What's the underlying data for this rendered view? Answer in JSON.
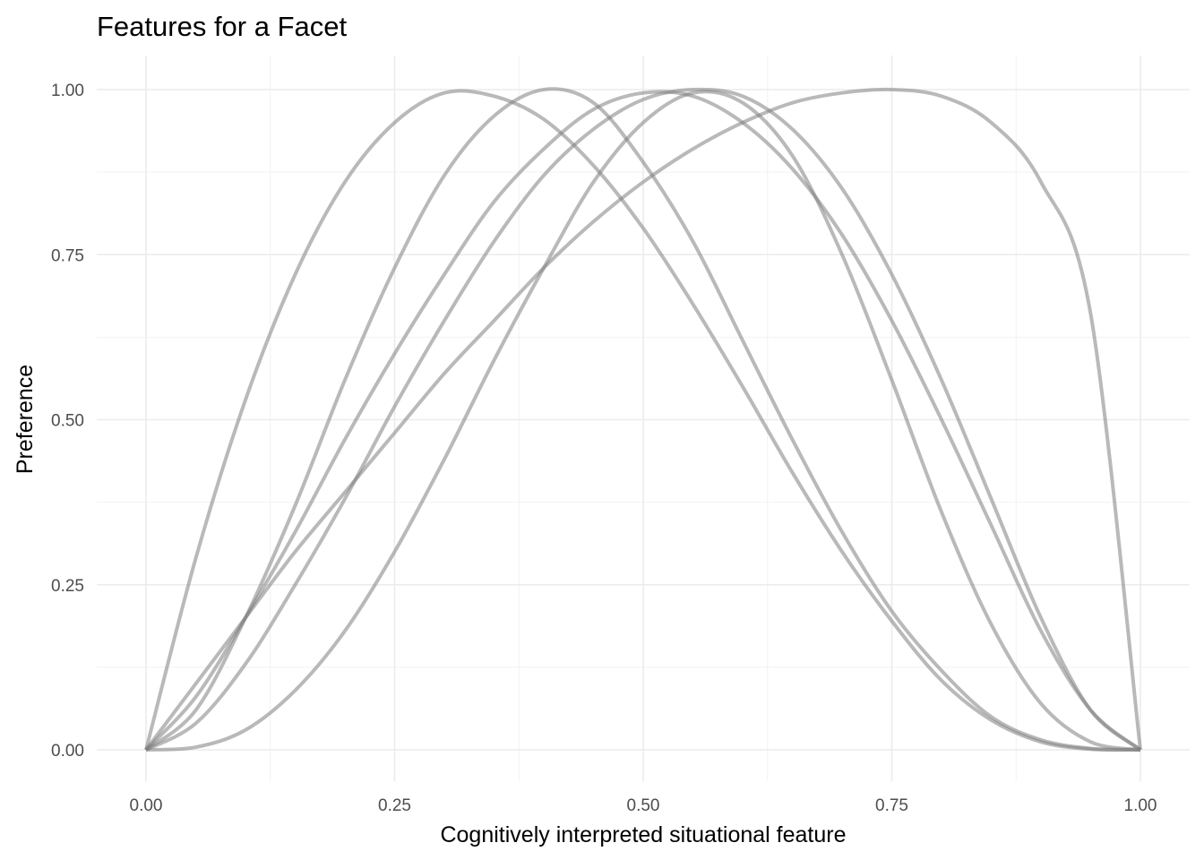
{
  "chart_data": {
    "type": "line",
    "title": "Features for a Facet",
    "xlabel": "Cognitively interpreted situational feature",
    "ylabel": "Preference",
    "xlim": [
      0,
      1
    ],
    "ylim": [
      0,
      1
    ],
    "xticks": [
      {
        "value": 0.0,
        "label": "0.00"
      },
      {
        "value": 0.25,
        "label": "0.25"
      },
      {
        "value": 0.5,
        "label": "0.50"
      },
      {
        "value": 0.75,
        "label": "0.75"
      },
      {
        "value": 1.0,
        "label": "1.00"
      }
    ],
    "yticks": [
      {
        "value": 0.0,
        "label": "0.00"
      },
      {
        "value": 0.25,
        "label": "0.25"
      },
      {
        "value": 0.5,
        "label": "0.50"
      },
      {
        "value": 0.75,
        "label": "0.75"
      },
      {
        "value": 1.0,
        "label": "1.00"
      }
    ],
    "grid": true,
    "legend": "none",
    "line_color": "#808080",
    "line_opacity": 0.55,
    "series": [
      {
        "x": [
          0,
          0.05,
          0.1,
          0.15,
          0.2,
          0.25,
          0.3,
          0.35,
          0.4,
          0.45,
          0.5,
          0.55,
          0.6,
          0.65,
          0.7,
          0.75,
          0.8,
          0.85,
          0.9,
          0.95,
          1.0
        ],
        "values": [
          0,
          0.29,
          0.53,
          0.72,
          0.86,
          0.95,
          0.995,
          0.99,
          0.955,
          0.885,
          0.79,
          0.675,
          0.55,
          0.42,
          0.3,
          0.195,
          0.105,
          0.045,
          0.012,
          0.001,
          0
        ]
      },
      {
        "x": [
          0,
          0.05,
          0.1,
          0.15,
          0.2,
          0.25,
          0.3,
          0.35,
          0.4,
          0.45,
          0.5,
          0.55,
          0.6,
          0.65,
          0.7,
          0.75,
          0.8,
          0.85,
          0.9,
          0.95,
          1.0
        ],
        "values": [
          0,
          0.06,
          0.2,
          0.37,
          0.56,
          0.73,
          0.87,
          0.96,
          1.0,
          0.98,
          0.89,
          0.77,
          0.62,
          0.47,
          0.33,
          0.21,
          0.12,
          0.05,
          0.015,
          0.002,
          0
        ]
      },
      {
        "x": [
          0,
          0.05,
          0.1,
          0.15,
          0.2,
          0.25,
          0.3,
          0.35,
          0.4,
          0.45,
          0.5,
          0.55,
          0.6,
          0.65,
          0.7,
          0.75,
          0.8,
          0.85,
          0.9,
          0.95,
          1.0
        ],
        "values": [
          0,
          0.08,
          0.2,
          0.33,
          0.47,
          0.6,
          0.72,
          0.83,
          0.91,
          0.97,
          0.995,
          0.99,
          0.95,
          0.88,
          0.78,
          0.65,
          0.5,
          0.34,
          0.18,
          0.06,
          0
        ]
      },
      {
        "x": [
          0,
          0.05,
          0.1,
          0.15,
          0.2,
          0.25,
          0.3,
          0.35,
          0.4,
          0.45,
          0.5,
          0.55,
          0.6,
          0.65,
          0.7,
          0.75,
          0.8,
          0.85,
          0.9,
          0.95,
          1.0
        ],
        "values": [
          0,
          0.004,
          0.03,
          0.09,
          0.18,
          0.3,
          0.44,
          0.59,
          0.73,
          0.86,
          0.95,
          0.995,
          0.98,
          0.9,
          0.75,
          0.56,
          0.36,
          0.19,
          0.07,
          0.012,
          0
        ]
      },
      {
        "x": [
          0,
          0.05,
          0.1,
          0.15,
          0.2,
          0.25,
          0.3,
          0.35,
          0.4,
          0.45,
          0.5,
          0.55,
          0.6,
          0.65,
          0.7,
          0.75,
          0.8,
          0.85,
          0.9,
          0.95,
          1.0
        ],
        "values": [
          0,
          0.04,
          0.13,
          0.25,
          0.38,
          0.52,
          0.65,
          0.77,
          0.87,
          0.94,
          0.985,
          1.0,
          0.99,
          0.94,
          0.85,
          0.72,
          0.56,
          0.38,
          0.2,
          0.06,
          0
        ]
      },
      {
        "x": [
          0,
          0.05,
          0.1,
          0.15,
          0.2,
          0.25,
          0.3,
          0.35,
          0.4,
          0.45,
          0.5,
          0.55,
          0.6,
          0.65,
          0.7,
          0.75,
          0.8,
          0.85,
          0.9,
          0.95,
          1.0
        ],
        "values": [
          0,
          0.1,
          0.2,
          0.3,
          0.39,
          0.48,
          0.57,
          0.65,
          0.73,
          0.8,
          0.86,
          0.91,
          0.95,
          0.98,
          0.995,
          1.0,
          0.99,
          0.95,
          0.86,
          0.66,
          0
        ]
      }
    ]
  }
}
